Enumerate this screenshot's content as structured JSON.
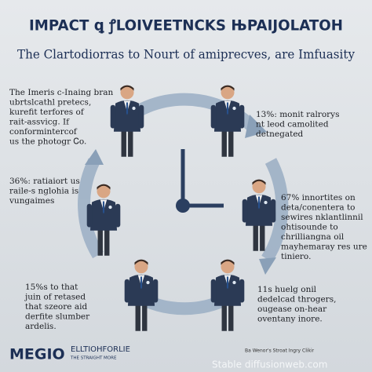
{
  "header": {
    "title": "IMPACT ꝗ ꝭLOIVEETNCKS ЊPAIJOLATOH",
    "subtitle": "The Clartodiorras to Nourt of amiprecves, are Imfuasity"
  },
  "blocks": [
    {
      "lines": [
        "The Imeris c-Inaing bran",
        "ubrtslcathl pretecs,",
        "kurefit terfores of",
        "rait-assvicg. If",
        "conformintercof",
        "us the photogr Ꮯo."
      ]
    },
    {
      "lines": [
        "36%: ratiaiort us",
        "raile-s nglohia is",
        "vungaimes"
      ]
    },
    {
      "lines": [
        "15%s to that",
        "juin of retased",
        "that szeore aid",
        "derfite slumber",
        "ardelis."
      ]
    },
    {
      "lines": [
        "13%: monit ralrorys",
        "nt leod camolited",
        "detnegated"
      ]
    },
    {
      "lines": [
        "67% innortites on",
        "deta/conentera to",
        "sewires nklantlinnil",
        "ohtisounde to",
        "chrilliangna oil",
        "mayhemaray res ure",
        "tiniero."
      ]
    },
    {
      "lines": [
        "11s huelg onil",
        "dedelcad throgers,",
        "ougease on-hear",
        "oventany inore."
      ]
    }
  ],
  "footer": {
    "brand": "MEGIO",
    "brand_name": "ELLTIOHFORLIE",
    "brand_tag": "THE STRAIGHT MORE",
    "credit": "Ba Wenor's Stroat Ingry Clikir",
    "watermark": "Stable diffusionweb.com"
  }
}
